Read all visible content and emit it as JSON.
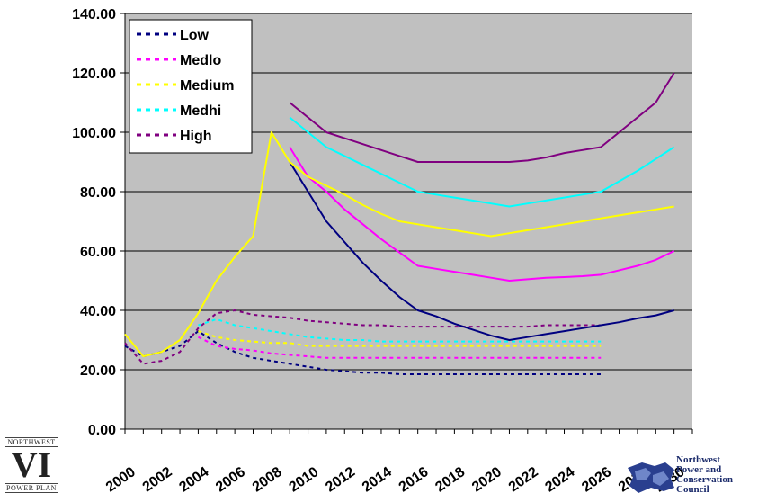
{
  "chart_data": {
    "type": "line",
    "title": "",
    "xlabel": "",
    "ylabel": "",
    "x_ticks": [
      "2000",
      "2002",
      "2004",
      "2006",
      "2008",
      "2010",
      "2012",
      "2014",
      "2016",
      "2018",
      "2020",
      "2022",
      "2024",
      "2026",
      "2028",
      "2030"
    ],
    "y_ticks": [
      "0.00",
      "20.00",
      "40.00",
      "60.00",
      "80.00",
      "100.00",
      "120.00",
      "140.00"
    ],
    "xlim": [
      2000,
      2031
    ],
    "ylim": [
      0,
      140
    ],
    "grid": true,
    "legend_position": "top-left",
    "colors": {
      "Low": "#000080",
      "Medlo": "#ff00ff",
      "Medium": "#ffff00",
      "Medhi": "#00ffff",
      "High": "#800080",
      "plot_bg": "#c0c0c0"
    },
    "legend": [
      "Low",
      "Medlo",
      "Medium",
      "Medhi",
      "High"
    ],
    "series_solid": [
      {
        "name": "Low",
        "x": [
          2009,
          2010,
          2011,
          2012,
          2013,
          2014,
          2015,
          2016,
          2017,
          2018,
          2019,
          2020,
          2021,
          2022,
          2023,
          2024,
          2025,
          2026,
          2027,
          2028,
          2029,
          2030
        ],
        "y": [
          90,
          80,
          70,
          63,
          56,
          50,
          44.5,
          40,
          38,
          35.5,
          33.5,
          31.5,
          30,
          31,
          32,
          33,
          34,
          35,
          36,
          37.3,
          38.3,
          40
        ]
      },
      {
        "name": "Medlo",
        "x": [
          2009,
          2010,
          2011,
          2012,
          2013,
          2014,
          2015,
          2016,
          2017,
          2018,
          2019,
          2020,
          2021,
          2022,
          2023,
          2024,
          2025,
          2026,
          2027,
          2028,
          2029,
          2030
        ],
        "y": [
          95,
          85,
          80,
          74,
          69,
          64,
          59.5,
          55,
          54,
          53,
          52,
          51,
          50,
          50.5,
          51,
          51.2,
          51.5,
          52,
          53.5,
          55,
          57,
          60
        ]
      },
      {
        "name": "Medium",
        "x": [
          2000,
          2001,
          2002,
          2003,
          2004,
          2005,
          2006,
          2007,
          2008,
          2009,
          2010,
          2011,
          2012,
          2013,
          2014,
          2015,
          2016,
          2017,
          2018,
          2019,
          2020,
          2021,
          2022,
          2023,
          2024,
          2025,
          2026,
          2027,
          2028,
          2029,
          2030
        ],
        "y": [
          32,
          24.5,
          26,
          30,
          39,
          50,
          58,
          65,
          100,
          90,
          85,
          82,
          79,
          75.5,
          72.5,
          70,
          69,
          68,
          67,
          66,
          65,
          66,
          67,
          68,
          69,
          70,
          71,
          72,
          73,
          74,
          75
        ]
      },
      {
        "name": "Medhi",
        "x": [
          2009,
          2010,
          2011,
          2012,
          2013,
          2014,
          2015,
          2016,
          2017,
          2018,
          2019,
          2020,
          2021,
          2022,
          2023,
          2024,
          2025,
          2026,
          2027,
          2028,
          2029,
          2030
        ],
        "y": [
          105,
          100,
          95,
          92,
          89,
          86,
          83,
          80,
          79,
          78,
          77,
          76,
          75,
          76,
          77,
          78,
          79,
          80,
          83.5,
          87,
          91,
          95
        ]
      },
      {
        "name": "High",
        "x": [
          2009,
          2010,
          2011,
          2012,
          2013,
          2014,
          2015,
          2016,
          2017,
          2018,
          2019,
          2020,
          2021,
          2022,
          2023,
          2024,
          2025,
          2026,
          2027,
          2028,
          2029,
          2030
        ],
        "y": [
          110,
          105,
          100,
          98,
          96,
          94,
          92,
          90,
          90,
          90,
          90,
          90,
          90,
          90.5,
          91.5,
          93,
          94,
          95,
          100,
          105,
          110,
          120
        ]
      }
    ],
    "series_dotted": [
      {
        "name": "Low",
        "x": [
          2000,
          2001,
          2002,
          2003,
          2004,
          2005,
          2006,
          2007,
          2008,
          2009,
          2010,
          2011,
          2012,
          2013,
          2014,
          2015,
          2016,
          2017,
          2018,
          2019,
          2020,
          2021,
          2022,
          2023,
          2024,
          2025,
          2026
        ],
        "y": [
          28,
          24.5,
          26,
          28,
          33,
          29,
          26,
          24,
          23,
          22,
          21,
          20,
          19.5,
          19,
          19,
          18.5,
          18.5,
          18.5,
          18.5,
          18.5,
          18.5,
          18.5,
          18.5,
          18.5,
          18.5,
          18.5,
          18.5
        ]
      },
      {
        "name": "Medlo",
        "x": [
          2004,
          2005,
          2006,
          2007,
          2008,
          2009,
          2010,
          2011,
          2012,
          2013,
          2014,
          2015,
          2016,
          2017,
          2018,
          2019,
          2020,
          2021,
          2022,
          2023,
          2024,
          2025,
          2026
        ],
        "y": [
          31,
          28,
          27,
          26.5,
          25.5,
          25,
          24.5,
          24,
          24,
          24,
          24,
          24,
          24,
          24,
          24,
          24,
          24,
          24,
          24,
          24,
          24,
          24,
          24
        ]
      },
      {
        "name": "Medium",
        "x": [
          2004,
          2005,
          2006,
          2007,
          2008,
          2009,
          2010,
          2011,
          2012,
          2013,
          2014,
          2015,
          2016,
          2017,
          2018,
          2019,
          2020,
          2021,
          2022,
          2023,
          2024,
          2025,
          2026
        ],
        "y": [
          33,
          31,
          30,
          29.5,
          29,
          29,
          28,
          28,
          28,
          28,
          28,
          28,
          28,
          28,
          28,
          28,
          28,
          28,
          28,
          28,
          28,
          28,
          28
        ]
      },
      {
        "name": "Medhi",
        "x": [
          2004,
          2005,
          2006,
          2007,
          2008,
          2009,
          2010,
          2011,
          2012,
          2013,
          2014,
          2015,
          2016,
          2017,
          2018,
          2019,
          2020,
          2021,
          2022,
          2023,
          2024,
          2025,
          2026
        ],
        "y": [
          35,
          37,
          35,
          34,
          33,
          32,
          31,
          30.5,
          30,
          30,
          29.5,
          29.5,
          29.5,
          29.5,
          29.5,
          29.5,
          29.5,
          29.5,
          29.5,
          29.5,
          29.5,
          29.5,
          29.5
        ]
      },
      {
        "name": "High",
        "x": [
          2000,
          2001,
          2002,
          2003,
          2004,
          2005,
          2006,
          2007,
          2008,
          2009,
          2010,
          2011,
          2012,
          2013,
          2014,
          2015,
          2016,
          2017,
          2018,
          2019,
          2020,
          2021,
          2022,
          2023,
          2024,
          2025,
          2026
        ],
        "y": [
          29,
          22,
          23,
          26,
          34,
          39,
          40,
          38.5,
          38,
          37.5,
          36.5,
          36,
          35.5,
          35,
          35,
          34.5,
          34.5,
          34.5,
          34.5,
          34.5,
          34.5,
          34.5,
          34.5,
          35,
          35,
          35,
          35
        ]
      }
    ]
  },
  "logos": {
    "left_top": "NORTHWEST",
    "left_roman": "VI",
    "left_bottom": "POWER PLAN",
    "right_name": "Northwest\nPower and\nConservation\nCouncil"
  }
}
